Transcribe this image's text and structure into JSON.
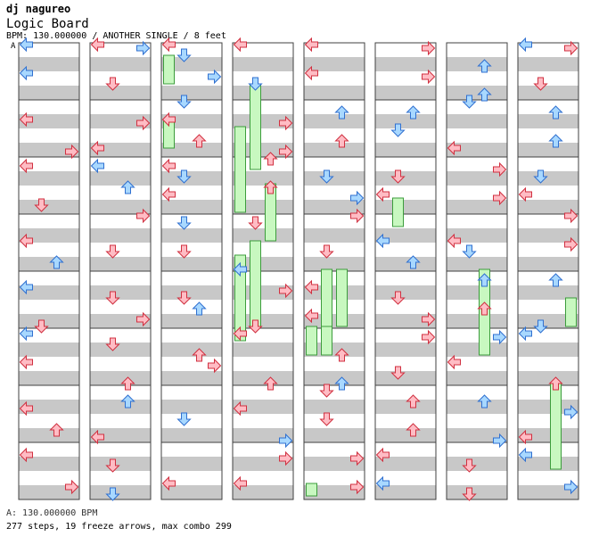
{
  "header": {
    "artist": "dj nagureo",
    "title": "Logic Board",
    "info": "BPM: 130.000000 / ANOTHER SINGLE / 8 feet",
    "bpm_marker": "A"
  },
  "footer": {
    "bpm_line": "A: 130.000000 BPM",
    "stats_line": "277 steps, 19 freeze arrows, max combo 299"
  },
  "colors": {
    "stripe": "#c8c8c8",
    "border": "#404040",
    "red_arrow_fill": "#ffbcc4",
    "red_arrow_stroke": "#d03040",
    "blue_arrow_fill": "#a8d8ff",
    "blue_arrow_stroke": "#3070d0",
    "freeze_fill": "#c8f8c0",
    "freeze_stroke": "#3c9c3c"
  },
  "chart_data": {
    "type": "stepchart",
    "lanes": [
      "left",
      "down",
      "up",
      "right"
    ],
    "panels_visible": 8,
    "measures_per_panel": 8,
    "rows_per_measure": 16,
    "notes": [
      [
        0,
        0,
        0,
        "B"
      ],
      [
        0,
        1,
        0,
        "R"
      ],
      [
        0,
        2,
        0,
        "R"
      ],
      [
        0,
        3,
        0,
        "R"
      ],
      [
        0,
        4,
        0,
        "B"
      ],
      [
        0,
        5,
        0,
        "B"
      ],
      [
        0,
        6,
        0,
        "R"
      ],
      [
        0,
        7,
        0,
        "R"
      ],
      [
        1,
        0,
        0,
        "R"
      ],
      [
        1,
        0,
        3,
        "B"
      ],
      [
        1,
        1,
        3,
        "R"
      ],
      [
        1,
        2,
        0,
        "B"
      ],
      [
        1,
        3,
        3,
        "R"
      ],
      [
        1,
        4,
        1,
        "R"
      ],
      [
        1,
        5,
        1,
        "R"
      ],
      [
        1,
        6,
        2,
        "B"
      ],
      [
        1,
        7,
        1,
        "R"
      ],
      [
        2,
        0,
        0,
        "R"
      ],
      [
        2,
        0,
        1,
        "B"
      ],
      [
        2,
        1,
        0,
        "R"
      ],
      [
        2,
        1,
        1,
        "B"
      ],
      [
        2,
        2,
        0,
        "R"
      ],
      [
        2,
        2,
        1,
        "B"
      ],
      [
        2,
        3,
        1,
        "B"
      ],
      [
        2,
        4,
        1,
        "R"
      ],
      [
        2,
        5,
        2,
        "R"
      ],
      [
        3,
        0,
        0,
        "R"
      ],
      [
        3,
        1,
        3,
        "R"
      ],
      [
        3,
        2,
        2,
        "R"
      ],
      [
        3,
        3,
        1,
        "R"
      ],
      [
        3,
        4,
        3,
        "R"
      ],
      [
        3,
        5,
        0,
        "R"
      ],
      [
        3,
        6,
        0,
        "R"
      ],
      [
        3,
        7,
        3,
        "R"
      ],
      [
        4,
        0,
        0,
        "R"
      ],
      [
        4,
        1,
        2,
        "B"
      ],
      [
        4,
        2,
        1,
        "B"
      ],
      [
        4,
        3,
        3,
        "R"
      ],
      [
        4,
        4,
        0,
        "R"
      ],
      [
        4,
        5,
        2,
        "R"
      ],
      [
        4,
        6,
        1,
        "R"
      ],
      [
        4,
        7,
        3,
        "R"
      ],
      [
        5,
        0,
        3,
        "R"
      ],
      [
        5,
        1,
        2,
        "B"
      ],
      [
        5,
        2,
        1,
        "R"
      ],
      [
        5,
        3,
        0,
        "B"
      ],
      [
        5,
        4,
        1,
        "R"
      ],
      [
        5,
        5,
        3,
        "R"
      ],
      [
        5,
        6,
        2,
        "R"
      ],
      [
        5,
        7,
        0,
        "R"
      ],
      [
        6,
        0,
        2,
        "B"
      ],
      [
        6,
        1,
        1,
        "B"
      ],
      [
        6,
        2,
        3,
        "R"
      ],
      [
        6,
        3,
        0,
        "R"
      ],
      [
        6,
        4,
        2,
        "B"
      ],
      [
        6,
        5,
        3,
        "B"
      ],
      [
        6,
        6,
        2,
        "B"
      ],
      [
        6,
        7,
        1,
        "R"
      ],
      [
        7,
        0,
        0,
        "B"
      ],
      [
        7,
        0,
        3,
        "R"
      ],
      [
        7,
        1,
        2,
        "B"
      ],
      [
        7,
        2,
        1,
        "B"
      ],
      [
        7,
        3,
        3,
        "R"
      ],
      [
        7,
        4,
        2,
        "B"
      ],
      [
        7,
        5,
        0,
        "B"
      ],
      [
        7,
        6,
        3,
        "B"
      ],
      [
        7,
        7,
        0,
        "B"
      ],
      [
        8,
        0,
        0,
        "B"
      ],
      [
        8,
        1,
        3,
        "R"
      ],
      [
        8,
        2,
        1,
        "R"
      ],
      [
        8,
        3,
        2,
        "B"
      ],
      [
        8,
        4,
        1,
        "R"
      ],
      [
        8,
        5,
        0,
        "R"
      ],
      [
        8,
        6,
        2,
        "R"
      ],
      [
        8,
        7,
        3,
        "R"
      ],
      [
        9,
        0,
        1,
        "R"
      ],
      [
        9,
        1,
        0,
        "R"
      ],
      [
        9,
        2,
        2,
        "B"
      ],
      [
        9,
        3,
        1,
        "R"
      ],
      [
        9,
        4,
        3,
        "R"
      ],
      [
        9,
        5,
        2,
        "R"
      ],
      [
        9,
        6,
        0,
        "R"
      ],
      [
        9,
        7,
        1,
        "B"
      ],
      [
        10,
        0,
        3,
        "B"
      ],
      [
        10,
        1,
        2,
        "R"
      ],
      [
        10,
        2,
        0,
        "R"
      ],
      [
        10,
        3,
        1,
        "R"
      ],
      [
        10,
        4,
        2,
        "B"
      ],
      [
        10,
        5,
        3,
        "R"
      ],
      [
        10,
        6,
        1,
        "B"
      ],
      [
        10,
        7,
        0,
        "R"
      ],
      [
        11,
        0,
        1,
        "B"
      ],
      [
        11,
        1,
        3,
        "R"
      ],
      [
        11,
        2,
        2,
        "R"
      ],
      [
        11,
        3,
        0,
        "B"
      ],
      [
        11,
        4,
        1,
        "R"
      ],
      [
        11,
        5,
        2,
        "R"
      ],
      [
        11,
        6,
        3,
        "B"
      ],
      [
        11,
        7,
        0,
        "R"
      ],
      [
        12,
        0,
        0,
        "R"
      ],
      [
        12,
        1,
        2,
        "R"
      ],
      [
        12,
        2,
        3,
        "B"
      ],
      [
        12,
        3,
        1,
        "R"
      ],
      [
        12,
        4,
        0,
        "R"
      ],
      [
        12,
        5,
        2,
        "B"
      ],
      [
        12,
        6,
        1,
        "R"
      ],
      [
        12,
        7,
        3,
        "R"
      ],
      [
        13,
        0,
        3,
        "R"
      ],
      [
        13,
        1,
        1,
        "B"
      ],
      [
        13,
        2,
        0,
        "R"
      ],
      [
        13,
        3,
        2,
        "B"
      ],
      [
        13,
        4,
        3,
        "R"
      ],
      [
        13,
        5,
        1,
        "R"
      ],
      [
        13,
        6,
        2,
        "R"
      ],
      [
        13,
        7,
        0,
        "B"
      ],
      [
        14,
        0,
        2,
        "B"
      ],
      [
        14,
        1,
        0,
        "R"
      ],
      [
        14,
        2,
        3,
        "R"
      ],
      [
        14,
        3,
        1,
        "B"
      ],
      [
        14,
        4,
        2,
        "R"
      ],
      [
        14,
        5,
        0,
        "R"
      ],
      [
        14,
        6,
        3,
        "B"
      ],
      [
        14,
        7,
        1,
        "R"
      ],
      [
        15,
        0,
        1,
        "R"
      ],
      [
        15,
        1,
        2,
        "B"
      ],
      [
        15,
        2,
        0,
        "R"
      ],
      [
        15,
        3,
        3,
        "R"
      ],
      [
        15,
        4,
        1,
        "B"
      ],
      [
        15,
        5,
        2,
        "R"
      ],
      [
        15,
        6,
        0,
        "R"
      ],
      [
        15,
        7,
        3,
        "B"
      ]
    ],
    "freezes": [
      [
        2,
        0,
        0,
        1,
        4
      ],
      [
        2,
        1,
        0,
        1,
        6
      ],
      [
        3,
        0,
        1,
        3,
        12
      ],
      [
        3,
        1,
        0,
        3,
        8
      ],
      [
        3,
        2,
        2,
        2,
        8
      ],
      [
        3,
        3,
        0,
        3,
        12
      ],
      [
        3,
        3,
        1,
        3,
        8
      ],
      [
        4,
        4,
        1,
        2,
        16
      ],
      [
        4,
        4,
        2,
        2,
        16
      ],
      [
        4,
        5,
        0,
        1,
        16
      ],
      [
        4,
        5,
        1,
        1,
        16
      ],
      [
        4,
        7,
        0,
        1,
        12
      ],
      [
        5,
        2,
        1,
        1,
        12
      ],
      [
        6,
        4,
        2,
        3,
        16
      ],
      [
        7,
        6,
        2,
        3,
        16
      ],
      [
        7,
        4,
        3,
        1,
        8
      ]
    ]
  }
}
